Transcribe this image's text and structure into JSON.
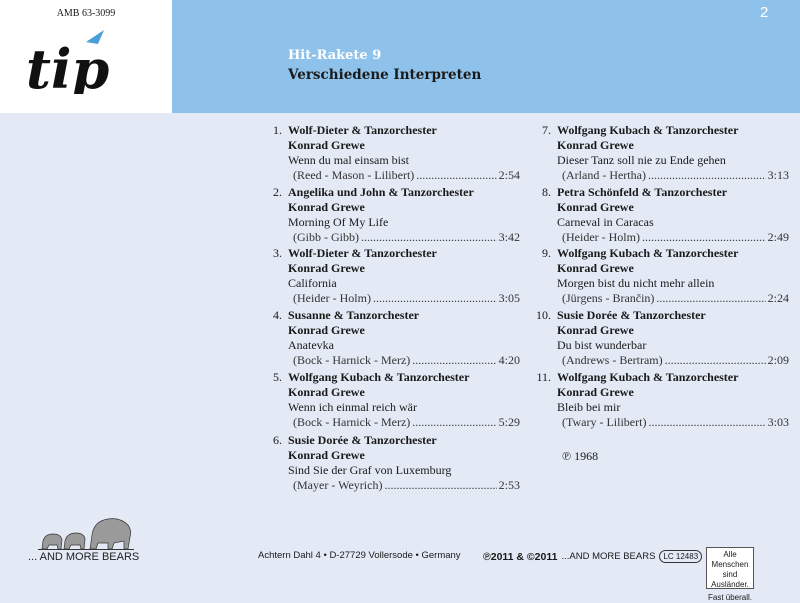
{
  "header": {
    "catalog_number": "AMB 63-3099",
    "logo_text": "tip",
    "page_number": "2",
    "title": "Hit-Rakete 9",
    "subtitle": "Verschiedene Interpreten",
    "band_color": "#8fc2ea",
    "logo_accent": "#4a9fd8"
  },
  "tracks": [
    {
      "num": "1.",
      "artist": "Wolf-Dieter & Tanzorchester",
      "orchestra": "Konrad Grewe",
      "title": "Wenn du mal einsam bist",
      "credits": "(Reed - Mason - Lilibert)",
      "time": "2:54"
    },
    {
      "num": "2.",
      "artist": "Angelika und John & Tanzorchester",
      "orchestra": "Konrad Grewe",
      "title": "Morning Of My Life",
      "credits": "(Gibb - Gibb)",
      "time": "3:42"
    },
    {
      "num": "3.",
      "artist": "Wolf-Dieter & Tanzorchester",
      "orchestra": "Konrad Grewe",
      "title": "California",
      "credits": "(Heider - Holm)",
      "time": "3:05"
    },
    {
      "num": "4.",
      "artist": "Susanne & Tanzorchester",
      "orchestra": "Konrad Grewe",
      "title": "Anatevka",
      "credits": "(Bock - Harnick - Merz)",
      "time": "4:20"
    },
    {
      "num": "5.",
      "artist": "Wolfgang Kubach & Tanzorchester",
      "orchestra": "Konrad Grewe",
      "title": "Wenn ich einmal reich wär",
      "credits": "(Bock - Harnick - Merz)",
      "time": "5:29"
    },
    {
      "num": "6.",
      "artist": "Susie Dorée & Tanzorchester",
      "orchestra": "Konrad Grewe",
      "title": "Sind Sie der Graf von Luxemburg",
      "credits": "(Mayer - Weyrich)",
      "time": "2:53"
    },
    {
      "num": "7.",
      "artist": "Wolfgang Kubach & Tanzorchester",
      "orchestra": "Konrad Grewe",
      "title": "Dieser Tanz soll nie zu Ende gehen",
      "credits": "(Arland - Hertha)",
      "time": "3:13"
    },
    {
      "num": "8.",
      "artist": "Petra Schönfeld & Tanzorchester",
      "orchestra": "Konrad Grewe",
      "title": "Carneval in Caracas",
      "credits": "(Heider - Holm)",
      "time": "2:49"
    },
    {
      "num": "9.",
      "artist": "Wolfgang Kubach & Tanzorchester",
      "orchestra": "Konrad Grewe",
      "title": "Morgen bist du nicht mehr allein",
      "credits": "(Jürgens - Brančin)",
      "time": "2:24"
    },
    {
      "num": "10.",
      "artist": "Susie Dorée & Tanzorchester",
      "orchestra": "Konrad Grewe",
      "title": "Du bist wunderbar",
      "credits": "(Andrews - Bertram)",
      "time": "2:09"
    },
    {
      "num": "11.",
      "artist": "Wolfgang Kubach & Tanzorchester",
      "orchestra": "Konrad Grewe",
      "title": "Bleib bei mir",
      "credits": "(Twary - Lilibert)",
      "time": "3:03"
    }
  ],
  "phonogram": "℗ 1968",
  "footer": {
    "label_name": "... AND MORE BEARS",
    "address": "Achtern Dahl 4 • D-27729 Vollersode • Germany",
    "copyright_bold": "℗2011 & ©2011",
    "copyright_label": "...AND MORE BEARS",
    "lc_prefix": "LC",
    "lc_code": "12483",
    "slogan_line1": "Alle Menschen",
    "slogan_line2": "sind Ausländer.",
    "slogan_line3": "Fast überall."
  }
}
